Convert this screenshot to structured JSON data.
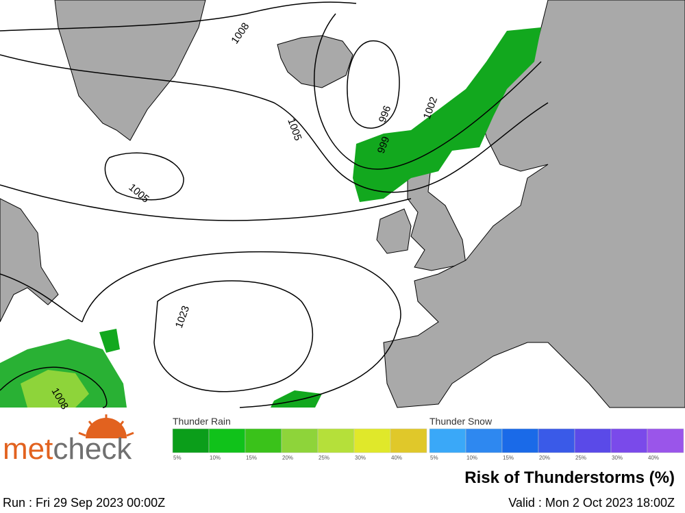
{
  "map": {
    "isobar_labels": [
      "1008",
      "996",
      "1002",
      "1005",
      "999",
      "1005",
      "1023",
      "1008"
    ]
  },
  "legend": {
    "thunder_rain": {
      "title": "Thunder Rain",
      "stops": [
        {
          "label": "5%",
          "color": "#0b9e1a"
        },
        {
          "label": "10%",
          "color": "#10c21a"
        },
        {
          "label": "15%",
          "color": "#3ac21a"
        },
        {
          "label": "20%",
          "color": "#8ed43a"
        },
        {
          "label": "25%",
          "color": "#b5e03a"
        },
        {
          "label": "30%",
          "color": "#e0e82a"
        },
        {
          "label": "40%",
          "color": "#e0c82a"
        }
      ]
    },
    "thunder_snow": {
      "title": "Thunder Snow",
      "stops": [
        {
          "label": "5%",
          "color": "#3aa8f8"
        },
        {
          "label": "10%",
          "color": "#2e88f0"
        },
        {
          "label": "15%",
          "color": "#1a6ae8"
        },
        {
          "label": "20%",
          "color": "#3a5ae8"
        },
        {
          "label": "25%",
          "color": "#5a4ae8"
        },
        {
          "label": "30%",
          "color": "#7a4aea"
        },
        {
          "label": "40%",
          "color": "#9a55ea"
        }
      ]
    }
  },
  "branding": {
    "logo_parts": [
      "met",
      "check"
    ]
  },
  "footer": {
    "title": "Risk of Thunderstorms (%)",
    "run": "Run : Fri 29 Sep 2023 00:00Z",
    "valid": "Valid : Mon 2 Oct 2023 18:00Z"
  }
}
